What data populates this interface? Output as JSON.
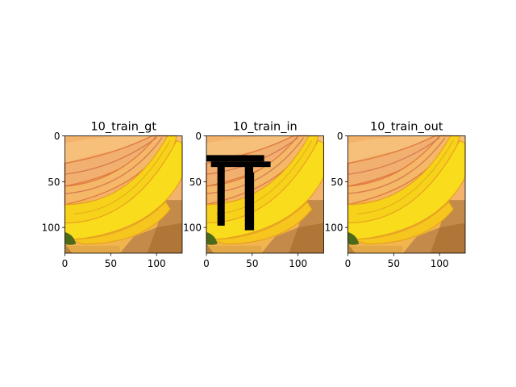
{
  "chart_data": [
    {
      "type": "image",
      "title": "10_train_gt",
      "xticks": [
        0,
        50,
        100
      ],
      "yticks": [
        0,
        50,
        100
      ],
      "xlim": [
        0,
        128
      ],
      "ylim": [
        128,
        0
      ],
      "grid": false,
      "mask_rects": []
    },
    {
      "type": "image",
      "title": "10_train_in",
      "xticks": [
        0,
        50,
        100
      ],
      "yticks": [
        0,
        50,
        100
      ],
      "xlim": [
        0,
        128
      ],
      "ylim": [
        128,
        0
      ],
      "grid": false,
      "mask_rects": [
        {
          "x0": 0,
          "x1": 63,
          "y0": 21,
          "y1": 28
        },
        {
          "x0": 5,
          "x1": 70,
          "y0": 28,
          "y1": 34
        },
        {
          "x0": 12,
          "x1": 20,
          "y0": 32,
          "y1": 98
        },
        {
          "x0": 42,
          "x1": 51,
          "y0": 32,
          "y1": 40
        },
        {
          "x0": 42,
          "x1": 52,
          "y0": 40,
          "y1": 103
        }
      ]
    },
    {
      "type": "image",
      "title": "10_train_out",
      "xticks": [
        0,
        50,
        100
      ],
      "yticks": [
        0,
        50,
        100
      ],
      "xlim": [
        0,
        128
      ],
      "ylim": [
        128,
        0
      ],
      "grid": false,
      "mask_rects": []
    }
  ]
}
